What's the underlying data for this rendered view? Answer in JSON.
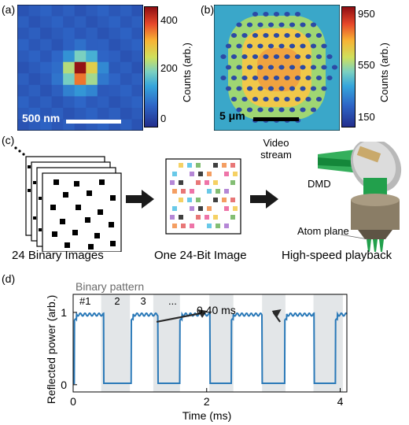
{
  "panel_a": {
    "label": "(a)",
    "scale_bar_label": "500 nm",
    "colorbar": {
      "title": "Counts (arb.)",
      "ticks": [
        "400",
        "200",
        "0"
      ]
    }
  },
  "panel_b": {
    "label": "(b)",
    "scale_bar_label": "5 μm",
    "colorbar": {
      "title": "Counts (arb.)",
      "ticks": [
        "950",
        "550",
        "150"
      ]
    }
  },
  "panel_c": {
    "label": "(c)",
    "caption_binary": "24 Binary Images",
    "caption_rgb": "One 24-Bit Image",
    "caption_playback": "High-speed playback",
    "video_stream": "Video stream",
    "dmd_label": "DMD",
    "atom_plane_label": "Atom plane"
  },
  "panel_d": {
    "label": "(d)",
    "binary_pattern_label": "Binary pattern",
    "pattern_numbers": [
      "#1",
      "2",
      "3",
      "..."
    ],
    "period_annotation": "0.40 ms",
    "colors": {
      "trace": "#2a79b8",
      "shade": "#e3e6e8"
    }
  },
  "chart_data": {
    "type": "line",
    "xlabel": "Time (ms)",
    "ylabel": "Reflected power (arb.)",
    "xlim": [
      0,
      4.1
    ],
    "ylim": [
      -0.1,
      1.25
    ],
    "xticks": [
      "0",
      "2",
      "4"
    ],
    "yticks": [
      "0",
      "1"
    ],
    "high_level": 0.97,
    "low_level": 0.02,
    "on_intervals": [
      [
        0.02,
        0.46
      ],
      [
        0.87,
        1.27
      ],
      [
        1.6,
        2.05
      ],
      [
        2.37,
        2.83
      ],
      [
        3.17,
        3.61
      ],
      [
        3.93,
        4.1
      ]
    ],
    "shaded_intervals": [
      [
        0.42,
        0.85
      ],
      [
        1.2,
        1.6
      ],
      [
        2.04,
        2.4
      ],
      [
        2.83,
        3.18
      ],
      [
        3.6,
        4.04
      ]
    ],
    "period_arrows_x": [
      1.98,
      3.0
    ]
  }
}
